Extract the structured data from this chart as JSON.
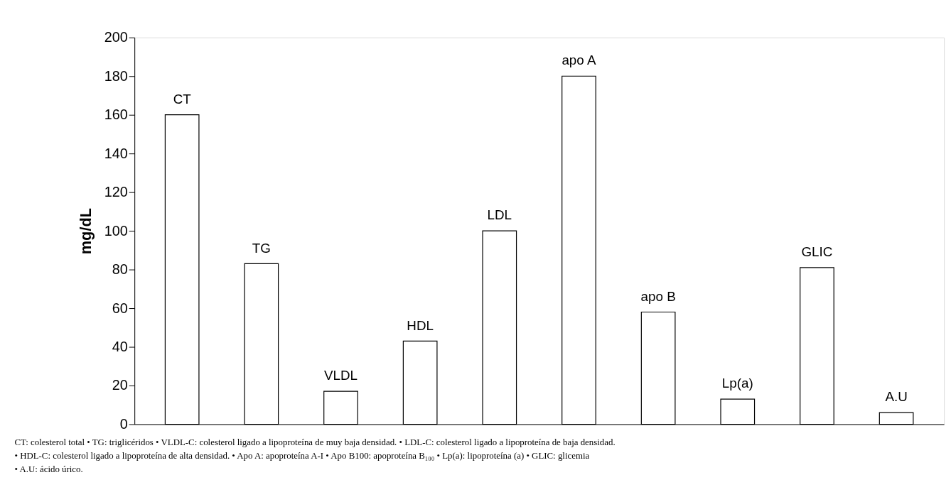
{
  "chart_data": {
    "type": "bar",
    "ylabel": "mg/dL",
    "categories": [
      "CT",
      "TG",
      "VLDL",
      "HDL",
      "LDL",
      "apo A",
      "apo B",
      "Lp(a)",
      "GLIC",
      "A.U"
    ],
    "series": [
      {
        "color": "#ffffff",
        "values": [
          160,
          83,
          17,
          43,
          100,
          180,
          58,
          13,
          81,
          6
        ]
      }
    ],
    "ylim": [
      0,
      200
    ],
    "yticks": [
      0,
      20,
      40,
      60,
      80,
      100,
      120,
      140,
      160,
      180,
      200
    ],
    "grid": false,
    "legend": false,
    "tick_labels": "y",
    "annotations": [
      "CT: colesterol total • TG: triglicéridos • VLDL-C: colesterol ligado a lipoproteína de muy baja densidad. • LDL-C: colesterol ligado a lipoproteína de baja densidad.",
      "• HDL-C: colesterol ligado a lipoproteína de alta densidad. • Apo A: apoproteína A-I • Apo B100: apoproteína B₁₀₀ • Lp(a): lipoproteína (a) • GLIC: glicemia",
      "• A.U: ácido úrico."
    ]
  }
}
